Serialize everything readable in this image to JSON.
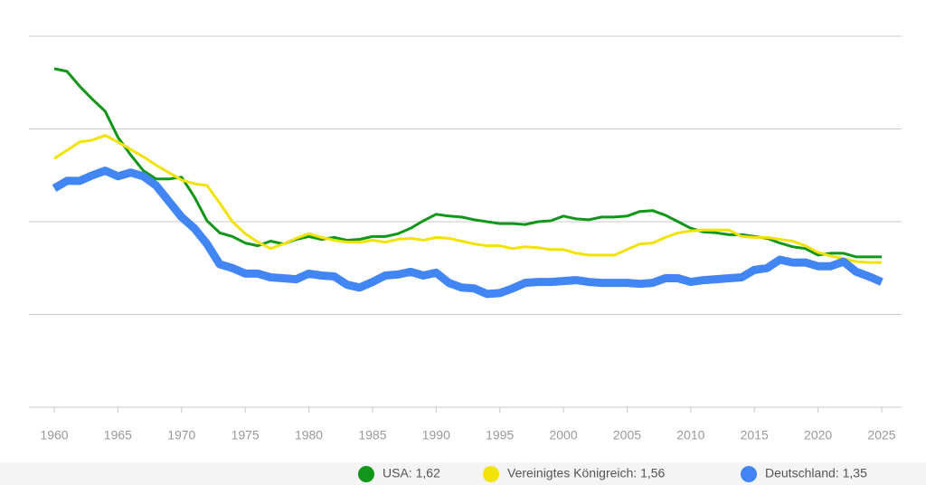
{
  "chart_data": {
    "type": "line",
    "x": [
      1960,
      1961,
      1962,
      1963,
      1964,
      1965,
      1966,
      1967,
      1968,
      1969,
      1970,
      1971,
      1972,
      1973,
      1974,
      1975,
      1976,
      1977,
      1978,
      1979,
      1980,
      1981,
      1982,
      1983,
      1984,
      1985,
      1986,
      1987,
      1988,
      1989,
      1990,
      1991,
      1992,
      1993,
      1994,
      1995,
      1996,
      1997,
      1998,
      1999,
      2000,
      2001,
      2002,
      2003,
      2004,
      2005,
      2006,
      2007,
      2008,
      2009,
      2010,
      2011,
      2012,
      2013,
      2014,
      2015,
      2016,
      2017,
      2018,
      2019,
      2020,
      2021,
      2022,
      2023,
      2024,
      2025
    ],
    "series": [
      {
        "name": "USA: 1,62",
        "color": "#109618",
        "width": 3,
        "values": [
          3.65,
          3.62,
          3.46,
          3.32,
          3.19,
          2.91,
          2.72,
          2.55,
          2.46,
          2.46,
          2.48,
          2.27,
          2.01,
          1.88,
          1.84,
          1.77,
          1.74,
          1.79,
          1.76,
          1.81,
          1.84,
          1.81,
          1.83,
          1.8,
          1.81,
          1.84,
          1.84,
          1.87,
          1.93,
          2.01,
          2.08,
          2.06,
          2.05,
          2.02,
          2.0,
          1.98,
          1.98,
          1.97,
          2.0,
          2.01,
          2.06,
          2.03,
          2.02,
          2.05,
          2.05,
          2.06,
          2.11,
          2.12,
          2.07,
          2.0,
          1.93,
          1.89,
          1.88,
          1.86,
          1.86,
          1.84,
          1.82,
          1.77,
          1.73,
          1.71,
          1.64,
          1.66,
          1.66,
          1.62,
          1.62,
          1.62
        ]
      },
      {
        "name": "Vereinigtes Königreich: 1,56",
        "color": "#f2e205",
        "width": 3,
        "values": [
          2.68,
          2.77,
          2.86,
          2.88,
          2.93,
          2.86,
          2.78,
          2.7,
          2.61,
          2.53,
          2.45,
          2.41,
          2.39,
          2.2,
          2.0,
          1.87,
          1.78,
          1.71,
          1.76,
          1.82,
          1.87,
          1.83,
          1.8,
          1.78,
          1.78,
          1.8,
          1.78,
          1.81,
          1.82,
          1.8,
          1.83,
          1.82,
          1.79,
          1.76,
          1.74,
          1.74,
          1.71,
          1.73,
          1.72,
          1.7,
          1.7,
          1.66,
          1.64,
          1.64,
          1.64,
          1.7,
          1.76,
          1.77,
          1.83,
          1.88,
          1.9,
          1.91,
          1.91,
          1.91,
          1.84,
          1.83,
          1.83,
          1.81,
          1.79,
          1.74,
          1.67,
          1.63,
          1.6,
          1.57,
          1.56,
          1.56
        ]
      },
      {
        "name": "Deutschland: 1,35",
        "color": "#4285f4",
        "width": 9,
        "values": [
          2.36,
          2.44,
          2.44,
          2.5,
          2.55,
          2.49,
          2.53,
          2.49,
          2.39,
          2.22,
          2.05,
          1.93,
          1.76,
          1.54,
          1.5,
          1.44,
          1.44,
          1.4,
          1.39,
          1.38,
          1.44,
          1.42,
          1.41,
          1.32,
          1.29,
          1.35,
          1.42,
          1.43,
          1.46,
          1.42,
          1.45,
          1.34,
          1.29,
          1.28,
          1.22,
          1.23,
          1.28,
          1.34,
          1.35,
          1.35,
          1.36,
          1.37,
          1.35,
          1.34,
          1.34,
          1.34,
          1.33,
          1.34,
          1.39,
          1.39,
          1.35,
          1.37,
          1.38,
          1.39,
          1.4,
          1.48,
          1.5,
          1.59,
          1.56,
          1.56,
          1.52,
          1.52,
          1.57,
          1.46,
          1.41,
          1.35
        ]
      }
    ],
    "xlim": [
      1960,
      2025
    ],
    "xticks": [
      1960,
      1965,
      1970,
      1975,
      1980,
      1985,
      1990,
      1995,
      2000,
      2005,
      2010,
      2015,
      2020,
      2025
    ],
    "ylim": [
      0,
      4
    ],
    "yticks": [
      0,
      1,
      2,
      3,
      4
    ],
    "show_ytick_labels": false,
    "grid": true,
    "legend": "bottom"
  }
}
